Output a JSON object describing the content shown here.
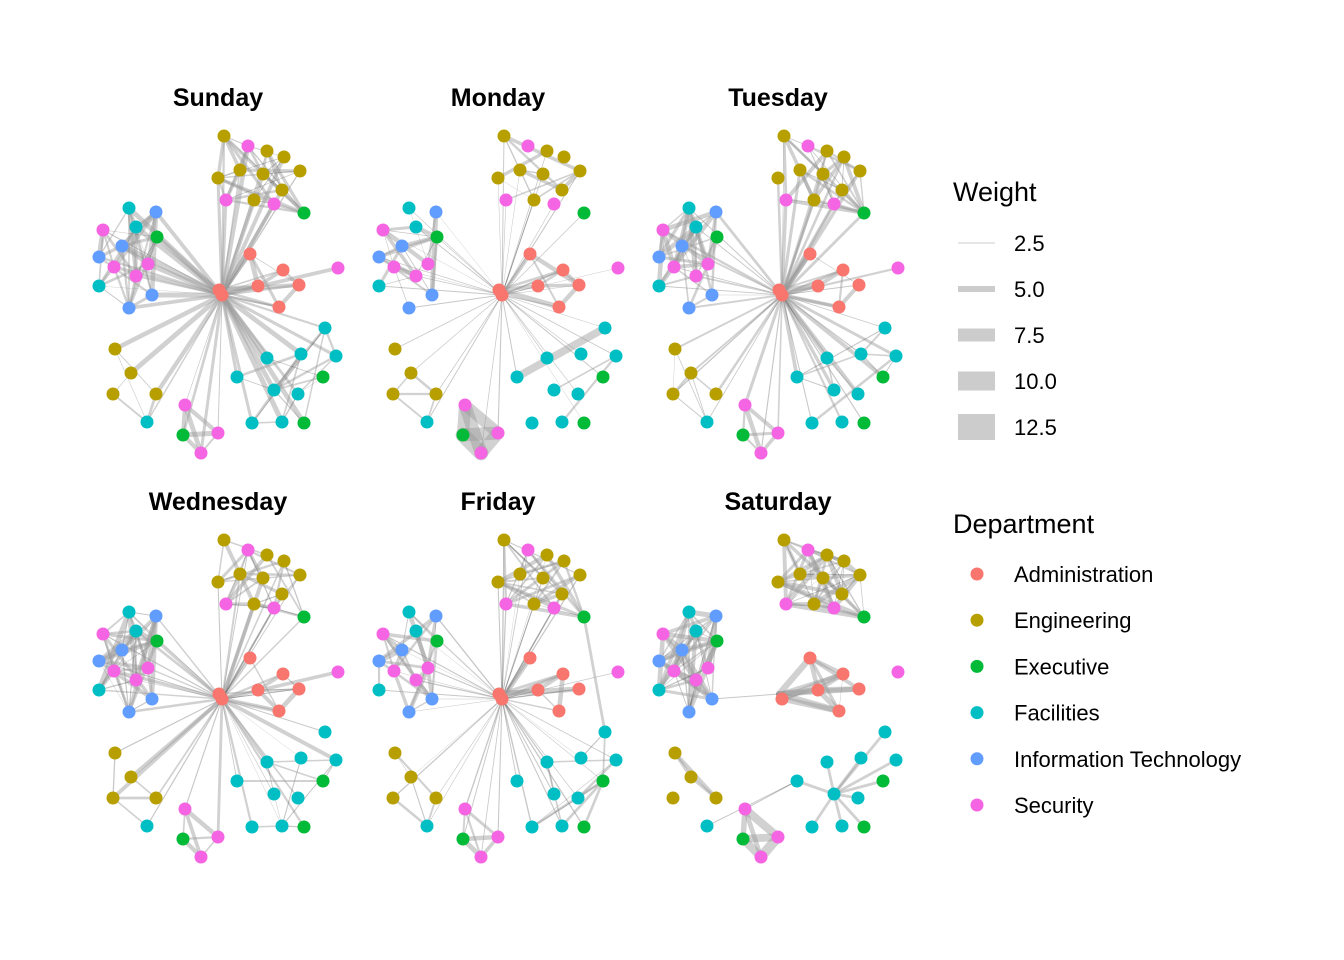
{
  "chart_data": {
    "type": "network",
    "title": "",
    "panels": [
      "Sunday",
      "Monday",
      "Tuesday",
      "Wednesday",
      "Friday",
      "Saturday"
    ],
    "legend": {
      "weight": {
        "title": "Weight",
        "placement": "right-top",
        "entries": [
          2.5,
          5.0,
          7.5,
          10.0,
          12.5
        ],
        "labels": [
          "2.5",
          "5.0",
          "7.5",
          "10.0",
          "12.5"
        ],
        "color": "#CCCCCC"
      },
      "department": {
        "title": "Department",
        "placement": "right-bottom",
        "entries": [
          {
            "label": "Administration",
            "color": "#F8766D"
          },
          {
            "label": "Engineering",
            "color": "#B79F00"
          },
          {
            "label": "Executive",
            "color": "#00BA38"
          },
          {
            "label": "Facilities",
            "color": "#00BFC4"
          },
          {
            "label": "Information Technology",
            "color": "#619CFF"
          },
          {
            "label": "Security",
            "color": "#F564E3"
          }
        ]
      }
    },
    "nodes": [
      {
        "id": 0,
        "dept": "Administration",
        "x": 0.0,
        "y": 0.0
      },
      {
        "id": 1,
        "dept": "Administration",
        "x": -0.012,
        "y": 0.02
      },
      {
        "id": 2,
        "dept": "Administration",
        "x": 0.112,
        "y": 0.164
      },
      {
        "id": 3,
        "dept": "Administration",
        "x": 0.244,
        "y": 0.1
      },
      {
        "id": 4,
        "dept": "Administration",
        "x": 0.144,
        "y": 0.036
      },
      {
        "id": 5,
        "dept": "Administration",
        "x": 0.308,
        "y": 0.04
      },
      {
        "id": 6,
        "dept": "Administration",
        "x": 0.228,
        "y": -0.048
      },
      {
        "id": 7,
        "dept": "Security",
        "x": 0.464,
        "y": 0.108
      },
      {
        "id": 8,
        "dept": "Engineering",
        "x": 0.008,
        "y": 0.636
      },
      {
        "id": 9,
        "dept": "Security",
        "x": 0.104,
        "y": 0.596
      },
      {
        "id": 10,
        "dept": "Engineering",
        "x": 0.18,
        "y": 0.576
      },
      {
        "id": 11,
        "dept": "Engineering",
        "x": 0.248,
        "y": 0.552
      },
      {
        "id": 12,
        "dept": "Engineering",
        "x": -0.016,
        "y": 0.468
      },
      {
        "id": 13,
        "dept": "Engineering",
        "x": 0.072,
        "y": 0.5
      },
      {
        "id": 14,
        "dept": "Engineering",
        "x": 0.164,
        "y": 0.484
      },
      {
        "id": 15,
        "dept": "Engineering",
        "x": 0.312,
        "y": 0.496
      },
      {
        "id": 16,
        "dept": "Engineering",
        "x": 0.24,
        "y": 0.42
      },
      {
        "id": 17,
        "dept": "Engineering",
        "x": 0.128,
        "y": 0.38
      },
      {
        "id": 18,
        "dept": "Security",
        "x": 0.016,
        "y": 0.38
      },
      {
        "id": 19,
        "dept": "Security",
        "x": 0.208,
        "y": 0.364
      },
      {
        "id": 20,
        "dept": "Executive",
        "x": 0.328,
        "y": 0.328
      },
      {
        "id": 21,
        "dept": "Facilities",
        "x": -0.372,
        "y": 0.348
      },
      {
        "id": 22,
        "dept": "Information Technology",
        "x": -0.264,
        "y": 0.332
      },
      {
        "id": 23,
        "dept": "Facilities",
        "x": -0.344,
        "y": 0.272
      },
      {
        "id": 24,
        "dept": "Security",
        "x": -0.476,
        "y": 0.26
      },
      {
        "id": 25,
        "dept": "Executive",
        "x": -0.26,
        "y": 0.232
      },
      {
        "id": 26,
        "dept": "Information Technology",
        "x": -0.4,
        "y": 0.196
      },
      {
        "id": 27,
        "dept": "Information Technology",
        "x": -0.492,
        "y": 0.152
      },
      {
        "id": 28,
        "dept": "Security",
        "x": -0.432,
        "y": 0.112
      },
      {
        "id": 29,
        "dept": "Security",
        "x": -0.296,
        "y": 0.124
      },
      {
        "id": 30,
        "dept": "Security",
        "x": -0.344,
        "y": 0.076
      },
      {
        "id": 31,
        "dept": "Facilities",
        "x": -0.492,
        "y": 0.036
      },
      {
        "id": 32,
        "dept": "Information Technology",
        "x": -0.28,
        "y": 0.0
      },
      {
        "id": 33,
        "dept": "Information Technology",
        "x": -0.372,
        "y": -0.052
      },
      {
        "id": 34,
        "dept": "Engineering",
        "x": -0.428,
        "y": -0.216
      },
      {
        "id": 35,
        "dept": "Engineering",
        "x": -0.364,
        "y": -0.312
      },
      {
        "id": 36,
        "dept": "Engineering",
        "x": -0.436,
        "y": -0.396
      },
      {
        "id": 37,
        "dept": "Engineering",
        "x": -0.264,
        "y": -0.396
      },
      {
        "id": 38,
        "dept": "Facilities",
        "x": -0.3,
        "y": -0.508
      },
      {
        "id": 39,
        "dept": "Security",
        "x": -0.148,
        "y": -0.44
      },
      {
        "id": 40,
        "dept": "Security",
        "x": -0.016,
        "y": -0.552
      },
      {
        "id": 41,
        "dept": "Security",
        "x": -0.084,
        "y": -0.632
      },
      {
        "id": 42,
        "dept": "Executive",
        "x": -0.156,
        "y": -0.56
      },
      {
        "id": 43,
        "dept": "Facilities",
        "x": 0.412,
        "y": -0.132
      },
      {
        "id": 44,
        "dept": "Facilities",
        "x": 0.456,
        "y": -0.244
      },
      {
        "id": 45,
        "dept": "Facilities",
        "x": 0.316,
        "y": -0.236
      },
      {
        "id": 46,
        "dept": "Facilities",
        "x": 0.18,
        "y": -0.252
      },
      {
        "id": 47,
        "dept": "Executive",
        "x": 0.404,
        "y": -0.328
      },
      {
        "id": 48,
        "dept": "Facilities",
        "x": 0.06,
        "y": -0.328
      },
      {
        "id": 49,
        "dept": "Facilities",
        "x": 0.208,
        "y": -0.38
      },
      {
        "id": 50,
        "dept": "Facilities",
        "x": 0.304,
        "y": -0.396
      },
      {
        "id": 51,
        "dept": "Facilities",
        "x": 0.12,
        "y": -0.512
      },
      {
        "id": 52,
        "dept": "Facilities",
        "x": 0.24,
        "y": -0.508
      },
      {
        "id": 53,
        "dept": "Executive",
        "x": 0.328,
        "y": -0.512
      }
    ],
    "panel_summaries": {
      "Sunday": {
        "hub_degree": "high",
        "cluster_density": "high",
        "components": 1
      },
      "Monday": {
        "hub_degree": "high",
        "cluster_density": "low",
        "components": 1,
        "note": "strong security/executive clique"
      },
      "Tuesday": {
        "hub_degree": "high",
        "cluster_density": "high",
        "components": 1
      },
      "Wednesday": {
        "hub_degree": "high",
        "cluster_density": "high",
        "components": 1
      },
      "Friday": {
        "hub_degree": "high",
        "cluster_density": "medium",
        "components": 1
      },
      "Saturday": {
        "hub_degree": "none",
        "cluster_density": "high",
        "components": 7
      }
    },
    "edge_weight_range": [
      1,
      13
    ]
  }
}
